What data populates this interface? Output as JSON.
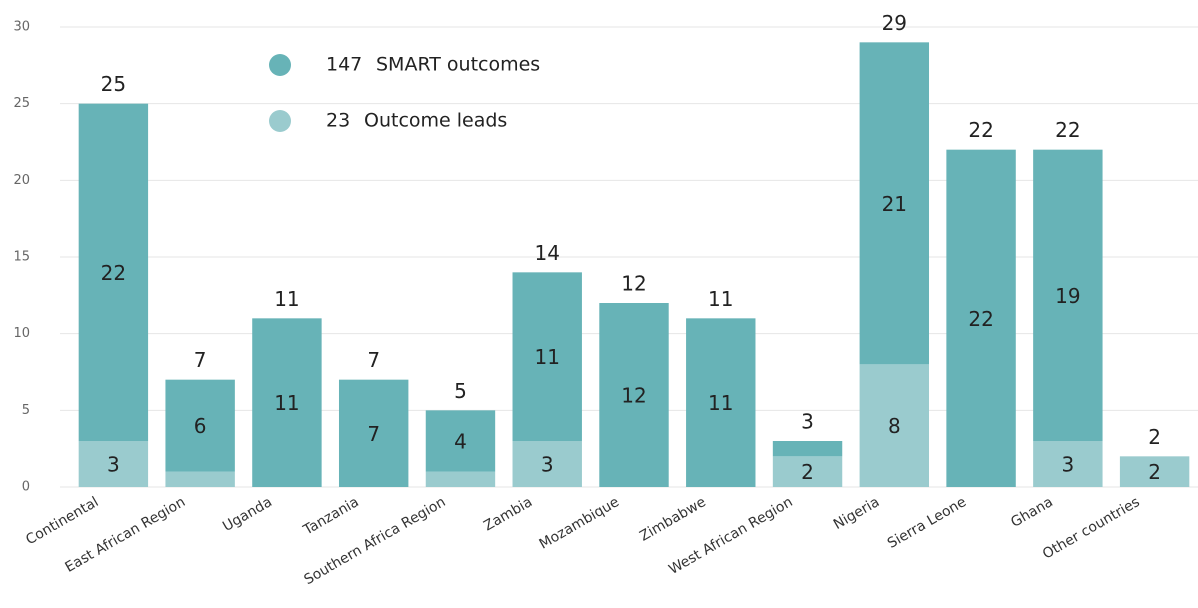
{
  "chart_data": {
    "type": "stacked_bar",
    "categories": [
      "Continental",
      "East African Region",
      "Uganda",
      "Tanzania",
      "Southern Africa Region",
      "Zambia",
      "Mozambique",
      "Zimbabwe",
      "West African Region",
      "Nigeria",
      "Sierra Leone",
      "Ghana",
      "Other countries"
    ],
    "series": [
      {
        "name": "Outcome leads",
        "legend_count": 23,
        "color": "#9acbce",
        "values": [
          3,
          1,
          0,
          0,
          1,
          3,
          0,
          0,
          2,
          8,
          0,
          3,
          2
        ],
        "value_labels": [
          "3",
          null,
          null,
          null,
          null,
          "3",
          null,
          null,
          "2",
          "8",
          null,
          "3",
          "2"
        ]
      },
      {
        "name": "SMART outcomes",
        "legend_count": 147,
        "color": "#67b3b7",
        "values": [
          22,
          6,
          11,
          7,
          4,
          11,
          12,
          11,
          1,
          21,
          22,
          19,
          0
        ],
        "value_labels": [
          "22",
          "6",
          "11",
          "7",
          "4",
          "11",
          "12",
          "11",
          null,
          "21",
          "22",
          "19",
          null
        ]
      }
    ],
    "totals": [
      25,
      7,
      11,
      7,
      5,
      14,
      12,
      11,
      3,
      29,
      22,
      22,
      2
    ],
    "ylim": [
      0,
      30
    ],
    "yticks": [
      0,
      5,
      10,
      15,
      20,
      25,
      30
    ],
    "grid": true,
    "legend": "top-left"
  }
}
